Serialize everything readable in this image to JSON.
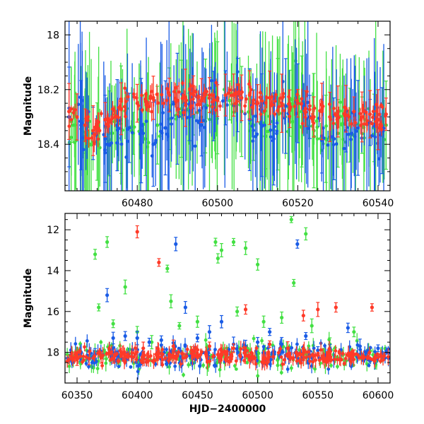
{
  "colors": {
    "blue": "#1a5ce6",
    "green": "#43e043",
    "red": "#ff3a28",
    "axis": "#000000"
  },
  "chart_data": [
    {
      "type": "scatter",
      "title": "",
      "xlabel": "",
      "ylabel": "Magnitude",
      "xlim": [
        60462,
        60543
      ],
      "ylim": [
        18.57,
        17.95
      ],
      "y_inverted": true,
      "x_ticks": [
        60480,
        60500,
        60520,
        60540
      ],
      "x_tick_labels": [
        "60480",
        "60500",
        "60520",
        "60540"
      ],
      "y_ticks": [
        18.0,
        18.2,
        18.4
      ],
      "y_tick_labels": [
        "18",
        "18.2",
        "18.4"
      ],
      "grid": false,
      "legend": "none",
      "description": "zoom of light curve, dense points with error bars; red baseline near 18.25-18.3",
      "series": [
        {
          "color": "blue",
          "points": [
            [
              60463,
              18.3
            ],
            [
              60466,
              18.33
            ],
            [
              60469,
              18.36
            ],
            [
              60472,
              18.38
            ],
            [
              60475,
              18.33
            ],
            [
              60478,
              18.34
            ],
            [
              60481,
              18.35
            ],
            [
              60484,
              18.4
            ],
            [
              60487,
              18.34
            ],
            [
              60490,
              18.27
            ],
            [
              60493,
              18.3
            ],
            [
              60496,
              18.33
            ],
            [
              60499,
              18.26
            ],
            [
              60502,
              18.23
            ],
            [
              60505,
              18.22
            ],
            [
              60508,
              18.31
            ],
            [
              60511,
              18.33
            ],
            [
              60514,
              18.38
            ],
            [
              60517,
              18.26
            ],
            [
              60520,
              18.25
            ],
            [
              60523,
              18.3
            ],
            [
              60526,
              18.37
            ],
            [
              60529,
              18.38
            ],
            [
              60532,
              18.35
            ],
            [
              60535,
              18.34
            ],
            [
              60538,
              18.32
            ],
            [
              60541,
              18.35
            ]
          ]
        },
        {
          "color": "green",
          "points": [
            [
              60464,
              18.33
            ],
            [
              60467,
              18.37
            ],
            [
              60470,
              18.39
            ],
            [
              60473,
              18.36
            ],
            [
              60476,
              18.31
            ],
            [
              60479,
              18.36
            ],
            [
              60482,
              18.38
            ],
            [
              60485,
              18.33
            ],
            [
              60488,
              18.27
            ],
            [
              60491,
              18.27
            ],
            [
              60494,
              18.3
            ],
            [
              60497,
              18.26
            ],
            [
              60500,
              18.23
            ],
            [
              60503,
              18.24
            ],
            [
              60506,
              18.28
            ],
            [
              60509,
              18.33
            ],
            [
              60512,
              18.37
            ],
            [
              60515,
              18.29
            ],
            [
              60518,
              18.25
            ],
            [
              60521,
              18.28
            ],
            [
              60524,
              18.35
            ],
            [
              60527,
              18.38
            ],
            [
              60530,
              18.36
            ],
            [
              60533,
              18.33
            ],
            [
              60536,
              18.33
            ],
            [
              60539,
              18.34
            ],
            [
              60542,
              18.33
            ]
          ]
        },
        {
          "color": "red",
          "points": [
            [
              60463,
              18.28
            ],
            [
              60465,
              18.3
            ],
            [
              60467,
              18.33
            ],
            [
              60469,
              18.35
            ],
            [
              60472,
              18.31
            ],
            [
              60476,
              18.27
            ],
            [
              60480,
              18.25
            ],
            [
              60484,
              18.23
            ],
            [
              60488,
              18.22
            ],
            [
              60490,
              18.24
            ],
            [
              60492,
              18.23
            ],
            [
              60494,
              18.22
            ],
            [
              60496,
              18.24
            ],
            [
              60498,
              18.22
            ],
            [
              60500,
              18.24
            ],
            [
              60502,
              18.22
            ],
            [
              60504,
              18.22
            ],
            [
              60506,
              18.23
            ],
            [
              60508,
              18.22
            ],
            [
              60510,
              18.25
            ],
            [
              60513,
              18.23
            ],
            [
              60516,
              18.25
            ],
            [
              60518,
              18.27
            ],
            [
              60520,
              18.25
            ],
            [
              60522,
              18.27
            ],
            [
              60524,
              18.3
            ],
            [
              60526,
              18.28
            ],
            [
              60528,
              18.3
            ],
            [
              60530,
              18.28
            ],
            [
              60532,
              18.27
            ],
            [
              60534,
              18.28
            ],
            [
              60536,
              18.3
            ],
            [
              60538,
              18.29
            ],
            [
              60540,
              18.31
            ],
            [
              60542,
              18.29
            ]
          ]
        }
      ]
    },
    {
      "type": "scatter",
      "title": "",
      "xlabel": "HJD−2400000",
      "ylabel": "Magnitude",
      "xlim": [
        60340,
        60610
      ],
      "ylim": [
        19.5,
        11.2
      ],
      "y_inverted": true,
      "x_ticks": [
        60350,
        60400,
        60450,
        60500,
        60550,
        60600
      ],
      "x_tick_labels": [
        "60350",
        "60400",
        "60450",
        "60500",
        "60550",
        "60600"
      ],
      "y_ticks": [
        12,
        14,
        16,
        18
      ],
      "y_tick_labels": [
        "12",
        "14",
        "16",
        "18"
      ],
      "grid": false,
      "legend": "none",
      "description": "full light curve; baseline ~18.2 with outliers to brighter magnitudes",
      "series": [
        {
          "color": "blue",
          "points": [
            [
              60365,
              18.1
            ],
            [
              60375,
              15.2
            ],
            [
              60380,
              17.3
            ],
            [
              60390,
              17.2
            ],
            [
              60400,
              17.3
            ],
            [
              60410,
              17.5
            ],
            [
              60420,
              17.4
            ],
            [
              60432,
              12.7
            ],
            [
              60440,
              15.8
            ],
            [
              60450,
              17.3
            ],
            [
              60460,
              17.0
            ],
            [
              60470,
              16.5
            ],
            [
              60480,
              17.6
            ],
            [
              60490,
              17.7
            ],
            [
              60500,
              17.5
            ],
            [
              60510,
              17.0
            ],
            [
              60520,
              17.6
            ],
            [
              60533,
              12.7
            ],
            [
              60540,
              17.2
            ],
            [
              60550,
              17.9
            ],
            [
              60560,
              17.8
            ],
            [
              60575,
              16.8
            ],
            [
              60585,
              17.7
            ],
            [
              60600,
              17.8
            ]
          ]
        },
        {
          "color": "green",
          "points": [
            [
              60365,
              13.2
            ],
            [
              60368,
              15.8
            ],
            [
              60375,
              12.6
            ],
            [
              60380,
              16.6
            ],
            [
              60390,
              14.8
            ],
            [
              60400,
              17.0
            ],
            [
              60412,
              17.5
            ],
            [
              60425,
              13.9
            ],
            [
              60428,
              15.5
            ],
            [
              60435,
              16.7
            ],
            [
              60450,
              16.5
            ],
            [
              60465,
              12.6
            ],
            [
              60467,
              13.4
            ],
            [
              60470,
              13.0
            ],
            [
              60480,
              12.6
            ],
            [
              60483,
              16.0
            ],
            [
              60490,
              12.9
            ],
            [
              60500,
              13.7
            ],
            [
              60505,
              16.5
            ],
            [
              60520,
              16.3
            ],
            [
              60528,
              11.5
            ],
            [
              60530,
              14.6
            ],
            [
              60540,
              12.2
            ],
            [
              60545,
              16.7
            ],
            [
              60560,
              17.6
            ],
            [
              60580,
              17.0
            ],
            [
              60598,
              18.6
            ]
          ]
        },
        {
          "color": "red",
          "points": [
            [
              60350,
              18.35
            ],
            [
              60360,
              18.3
            ],
            [
              60370,
              18.25
            ],
            [
              60380,
              18.3
            ],
            [
              60390,
              18.2
            ],
            [
              60400,
              12.1
            ],
            [
              60405,
              17.8
            ],
            [
              60418,
              13.6
            ],
            [
              60430,
              17.7
            ],
            [
              60445,
              17.9
            ],
            [
              60460,
              17.7
            ],
            [
              60480,
              17.8
            ],
            [
              60490,
              15.9
            ],
            [
              60510,
              17.6
            ],
            [
              60525,
              17.8
            ],
            [
              60538,
              16.2
            ],
            [
              60550,
              15.9
            ],
            [
              60565,
              15.8
            ],
            [
              60580,
              18.1
            ],
            [
              60595,
              15.8
            ],
            [
              60605,
              18.2
            ]
          ]
        }
      ]
    }
  ]
}
